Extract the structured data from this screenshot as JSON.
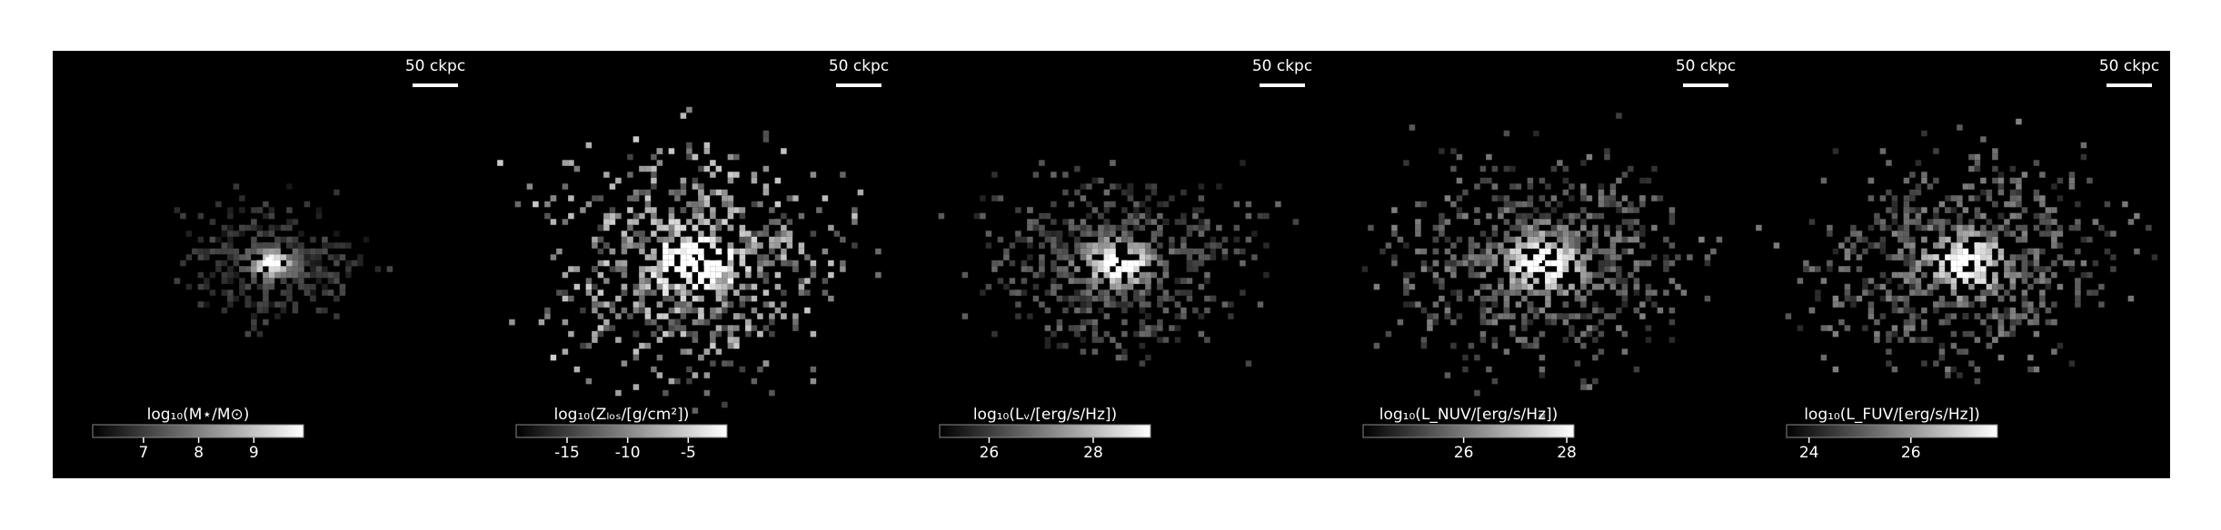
{
  "chart_data": [
    {
      "type": "image",
      "scalebar": "50 ckpc",
      "colorbar_label": "log₁₀(M⋆/M⊙)",
      "clim": [
        6.08,
        9.9
      ],
      "cticks": [
        7,
        8,
        9
      ]
    },
    {
      "type": "image",
      "scalebar": "50 ckpc",
      "colorbar_label": "log₁₀(Zₗₒₛ/[g/cm²])",
      "clim": [
        -19.2,
        -1.8
      ],
      "cticks": [
        -15,
        -10,
        -5
      ]
    },
    {
      "type": "image",
      "scalebar": "50 ckpc",
      "colorbar_label": "log₁₀(Lᵥ/[erg/s/Hz])",
      "clim": [
        25.05,
        29.1
      ],
      "cticks": [
        26,
        28
      ]
    },
    {
      "type": "image",
      "scalebar": "50 ckpc",
      "colorbar_label": "log₁₀(L_NUV/[erg/s/Hz])",
      "clim": [
        24.05,
        28.14
      ],
      "cticks": [
        26,
        28
      ]
    },
    {
      "type": "image",
      "scalebar": "50 ckpc",
      "colorbar_label": "log₁₀(L_FUV/[erg/s/Hz])",
      "clim": [
        23.56,
        27.7
      ],
      "cticks": [
        24,
        26
      ]
    }
  ]
}
